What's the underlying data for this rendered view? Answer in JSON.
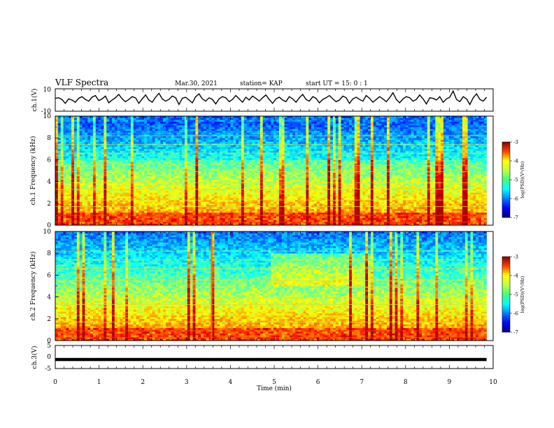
{
  "header": {
    "title": "VLF Spectra",
    "date": "Mar.30, 2021",
    "station": "station= KAP",
    "start": "start  UT =   15: 0  : 1"
  },
  "colors": {
    "trace": "#000000",
    "background": "#ffffff"
  },
  "chart_data": [
    {
      "type": "line",
      "panel": "waveform-ch1",
      "ylabel": "ch.1(V)",
      "ylim": [
        -10,
        10
      ],
      "y_ticks": [
        10,
        -10
      ],
      "x_unit": "min",
      "xlim": [
        0,
        10
      ],
      "data_xlim": [
        0,
        9.85
      ],
      "description_values": "noisy signal fluctuating approximately between -7 and 9 V around ~1 V",
      "samples": [
        1.5,
        2.0,
        0.5,
        -3.0,
        1.0,
        0.0,
        -2.0,
        1.5,
        3.0,
        0.5,
        -1.0,
        2.5,
        4.0,
        -0.5,
        1.0,
        3.5,
        -2.5,
        0.0,
        2.0,
        5.0,
        1.0,
        -1.5,
        0.5,
        3.0,
        2.0,
        -3.0,
        1.0,
        4.5,
        0.0,
        -2.0,
        2.5,
        6.0,
        1.0,
        -1.0,
        0.5,
        3.5,
        2.0,
        -4.0,
        1.5,
        2.5,
        0.0,
        -2.5,
        3.0,
        5.5,
        1.0,
        -1.0,
        2.0,
        0.5,
        -3.5,
        1.0,
        3.0,
        2.0,
        -1.5,
        0.5,
        4.0,
        1.0,
        -2.0,
        2.5,
        0.0,
        3.5,
        1.5,
        -1.0,
        2.0,
        4.5,
        0.5,
        -3.0,
        1.0,
        2.5,
        0.0,
        -1.5,
        3.0,
        1.0,
        -2.0,
        2.0,
        5.0,
        0.5,
        -1.0,
        3.0,
        1.5,
        -2.5,
        0.5,
        2.0,
        4.0,
        1.0,
        -1.5,
        0.0,
        3.5,
        2.0,
        -3.0,
        1.0,
        2.5,
        0.5,
        -1.0,
        4.0,
        1.5,
        -2.0,
        0.5,
        3.0,
        1.0,
        -1.5,
        2.0,
        6.5,
        0.5,
        -2.5,
        1.0,
        3.0,
        2.0,
        -1.0,
        0.5,
        4.5,
        1.0,
        -3.5,
        2.0,
        1.5,
        0.0,
        3.0,
        -2.0,
        1.0,
        2.5,
        8.0,
        0.5,
        -1.5,
        3.0,
        1.0,
        -4.0,
        2.0,
        5.5,
        0.5,
        -1.0,
        2.5
      ]
    },
    {
      "type": "heatmap",
      "panel": "spectrogram-ch1",
      "ylabel": "ch.1 Frequency (kHz)",
      "ylim": [
        0,
        10
      ],
      "y_ticks": [
        0,
        2,
        4,
        6,
        8,
        10
      ],
      "xlim": [
        0,
        10
      ],
      "data_xlim": [
        0,
        9.85
      ],
      "colorbar": {
        "label": "log(PSD)(V²/Hz)",
        "range": [
          -7,
          -3
        ],
        "ticks": [
          -3,
          -4,
          -5,
          -6,
          -7
        ],
        "colormap": "jet"
      },
      "summary": "broadband VLF noise; intense (yellow-red) below ~2 kHz, moderate (cyan-green) 2–6 kHz, weak (blue) 6–10 kHz, with persistent horizontal narrowband lines and frequent vertical impulsive spikes"
    },
    {
      "type": "heatmap",
      "panel": "spectrogram-ch2",
      "ylabel": "ch.2 Frequency (kHz)",
      "ylim": [
        0,
        10
      ],
      "y_ticks": [
        0,
        2,
        4,
        6,
        8,
        10
      ],
      "xlim": [
        0,
        10
      ],
      "data_xlim": [
        0,
        9.85
      ],
      "colorbar": {
        "label": "log(PSD)(V²/Hz)",
        "range": [
          -7,
          -3
        ],
        "ticks": [
          -3,
          -4,
          -5,
          -6,
          -7
        ],
        "colormap": "jet"
      },
      "summary": "similar broadband VLF noise; green enhancement around 5–8 kHz between ~4.9 and ~7.2 min, strong impulse near 3.6 min"
    },
    {
      "type": "line",
      "panel": "waveform-ch3",
      "ylabel": "ch.3(V)",
      "ylim": [
        -5,
        5
      ],
      "y_ticks": [
        5,
        0,
        -5
      ],
      "xlim": [
        0,
        10
      ],
      "data_xlim": [
        0,
        9.85
      ],
      "value_approx": -1.0,
      "summary": "thick nearly constant trace at about -1 V"
    }
  ],
  "x_axis": {
    "label": "Time  (min)",
    "ticks": [
      "0",
      "1",
      "2",
      "3",
      "4",
      "5",
      "6",
      "7",
      "8",
      "9",
      "10"
    ]
  }
}
